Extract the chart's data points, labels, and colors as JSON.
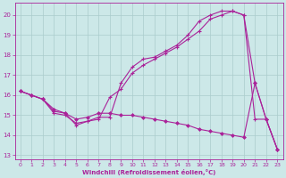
{
  "title": "",
  "xlabel": "Windchill (Refroidissement éolien,°C)",
  "ylabel": "",
  "background_color": "#cce8e8",
  "grid_color": "#aacccc",
  "line_color": "#aa2299",
  "xlim": [
    -0.5,
    23.5
  ],
  "ylim": [
    12.8,
    20.6
  ],
  "yticks": [
    13,
    14,
    15,
    16,
    17,
    18,
    19,
    20
  ],
  "xticks": [
    0,
    1,
    2,
    3,
    4,
    5,
    6,
    7,
    8,
    9,
    10,
    11,
    12,
    13,
    14,
    15,
    16,
    17,
    18,
    19,
    20,
    21,
    22,
    23
  ],
  "line1_x": [
    0,
    1,
    2,
    3,
    4,
    5,
    6,
    7,
    8,
    9,
    10,
    11,
    12,
    13,
    14,
    15,
    16,
    17,
    18,
    19,
    20,
    21,
    22,
    23
  ],
  "line1_y": [
    16.2,
    16.0,
    15.8,
    15.1,
    15.0,
    14.6,
    14.7,
    14.8,
    15.9,
    16.3,
    17.1,
    17.5,
    17.8,
    18.1,
    18.4,
    18.8,
    19.2,
    19.8,
    20.0,
    20.2,
    20.0,
    16.6,
    14.8,
    13.3
  ],
  "line2_x": [
    0,
    1,
    2,
    3,
    4,
    5,
    6,
    7,
    8,
    9,
    10,
    11,
    12,
    13,
    14,
    15,
    16,
    17,
    18,
    19,
    20,
    21,
    22,
    23
  ],
  "line2_y": [
    16.2,
    16.0,
    15.8,
    15.2,
    15.1,
    14.5,
    14.7,
    14.9,
    14.9,
    16.6,
    17.4,
    17.8,
    17.9,
    18.2,
    18.5,
    19.0,
    19.7,
    20.0,
    20.2,
    20.2,
    20.0,
    14.8,
    14.8,
    13.3
  ],
  "line3_x": [
    0,
    1,
    2,
    3,
    4,
    5,
    6,
    7,
    8,
    9,
    10,
    11,
    12,
    13,
    14,
    15,
    16,
    17,
    18,
    19,
    20,
    21,
    22,
    23
  ],
  "line3_y": [
    16.2,
    16.0,
    15.8,
    15.3,
    15.1,
    14.8,
    14.9,
    15.1,
    15.1,
    15.0,
    15.0,
    14.9,
    14.8,
    14.7,
    14.6,
    14.5,
    14.3,
    14.2,
    14.1,
    14.0,
    13.9,
    16.6,
    14.8,
    13.3
  ]
}
